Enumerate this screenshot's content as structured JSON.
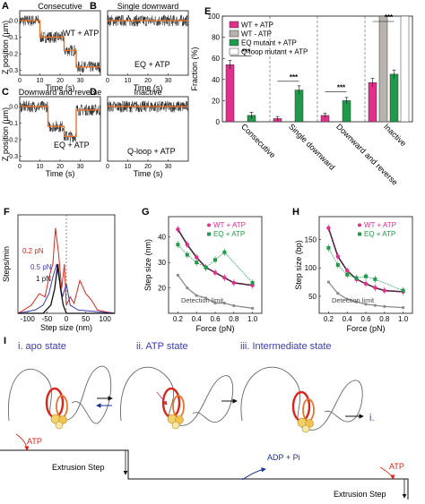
{
  "colors": {
    "wt": "#e0308a",
    "wt_minus": "#b8b3ae",
    "eq": "#1f9a4a",
    "qloop": "#ffffff",
    "trace_fit": "#e8742a",
    "red": "#d9261c",
    "blue": "#1c2f8c",
    "purple": "#3a3ab0",
    "gray_curve": "#8a8a8a"
  },
  "panels": {
    "A": {
      "letter": "A",
      "title": "Consecutive",
      "annotation": "WT + ATP"
    },
    "B": {
      "letter": "B",
      "title": "Single downward",
      "annotation": "EQ + ATP"
    },
    "C": {
      "letter": "C",
      "title": "Downward and reverse",
      "annotation": "EQ + ATP"
    },
    "D": {
      "letter": "D",
      "title": "Inactive",
      "annotation": "Q-loop + ATP"
    },
    "E": {
      "letter": "E"
    },
    "F": {
      "letter": "F",
      "labels": [
        "0.2 pN",
        "0.5 pN",
        "1 pN"
      ]
    },
    "G": {
      "letter": "G",
      "detection": "Detection limit"
    },
    "H": {
      "letter": "H",
      "detection": "Detection limit"
    },
    "I": {
      "letter": "I",
      "states": [
        "i. apo state",
        "ii. ATP state",
        "iii. Intermediate state",
        "i."
      ],
      "atp1": "ATP",
      "atp2": "ATP",
      "adp": "ADP + Pi",
      "step1": "Extrusion Step",
      "step2": "Extrusion Step"
    }
  },
  "axes": {
    "trace_y_label": "Z position (µm)",
    "trace_x_label": "Time (s)",
    "trace_x_ticks": [
      "0",
      "10",
      "20",
      "30"
    ],
    "trace_y_ticks": [
      "0.0",
      "-0.1",
      "-0.2",
      "-0.3"
    ],
    "E_y_label": "Fraction (%)",
    "E_y_ticks": [
      "0",
      "20",
      "40",
      "60",
      "80",
      "100"
    ],
    "F_y_label": "Steps/min",
    "F_x_label": "Step size (nm)",
    "F_x_ticks": [
      "-100",
      "-50",
      "0",
      "50",
      "100"
    ],
    "G_y_label": "Step size (nm)",
    "G_x_label": "Force (pN)",
    "G_y_ticks": [
      "20",
      "30",
      "40"
    ],
    "H_y_label": "Step size (bp)",
    "H_x_label": "Force (pN)",
    "H_y_ticks": [
      "50",
      "100",
      "150"
    ],
    "force_ticks": [
      "0.2",
      "0.4",
      "0.6",
      "0.8",
      "1.0"
    ]
  },
  "chart_data": [
    {
      "type": "bar",
      "panel": "E",
      "categories": [
        "Consecutive",
        "Single downward",
        "Downward and reverse",
        "Inactive"
      ],
      "series": [
        {
          "name": "WT + ATP",
          "values": [
            54,
            3,
            6,
            37
          ],
          "errors": [
            4,
            2,
            2,
            4
          ]
        },
        {
          "name": "WT - ATP",
          "values": [
            0,
            0,
            0,
            100
          ],
          "errors": [
            0,
            0,
            0,
            0
          ]
        },
        {
          "name": "EQ mutant + ATP",
          "values": [
            6,
            30,
            20,
            45
          ],
          "errors": [
            3,
            4,
            3,
            4
          ]
        },
        {
          "name": "Q-loop mutant + ATP",
          "values": [
            0,
            0,
            0,
            100
          ],
          "errors": [
            0,
            0,
            0,
            0
          ]
        }
      ],
      "significance": [
        "***",
        "***",
        "***",
        "***"
      ],
      "ylim": [
        0,
        100
      ]
    },
    {
      "type": "line",
      "panel": "G",
      "series": [
        {
          "name": "WT + ATP",
          "x": [
            0.2,
            0.3,
            0.4,
            0.5,
            0.6,
            0.7,
            0.8,
            1.0
          ],
          "y": [
            43,
            37,
            32,
            28,
            26,
            24,
            22,
            21
          ]
        },
        {
          "name": "EQ + ATP",
          "x": [
            0.2,
            0.3,
            0.4,
            0.5,
            0.6,
            0.7,
            1.0
          ],
          "y": [
            37,
            33,
            30,
            28,
            31,
            34,
            22
          ]
        },
        {
          "name": "Detection limit",
          "x": [
            0.2,
            0.3,
            0.4,
            0.5,
            0.6,
            0.7,
            0.8,
            1.0
          ],
          "y": [
            25,
            20,
            17,
            16,
            14,
            14,
            13,
            12
          ]
        }
      ],
      "xlim": [
        0.1,
        1.1
      ],
      "ylim": [
        10,
        48
      ]
    },
    {
      "type": "line",
      "panel": "H",
      "series": [
        {
          "name": "WT + ATP",
          "x": [
            0.2,
            0.3,
            0.4,
            0.5,
            0.6,
            0.7,
            0.8,
            1.0
          ],
          "y": [
            170,
            120,
            95,
            80,
            72,
            65,
            60,
            58
          ]
        },
        {
          "name": "EQ + ATP",
          "x": [
            0.2,
            0.3,
            0.4,
            0.5,
            0.6,
            0.7,
            1.0
          ],
          "y": [
            135,
            105,
            88,
            82,
            85,
            80,
            60
          ]
        },
        {
          "name": "Detection limit",
          "x": [
            0.2,
            0.3,
            0.4,
            0.5,
            0.6,
            0.7,
            0.8,
            1.0
          ],
          "y": [
            75,
            55,
            45,
            40,
            36,
            34,
            32,
            30
          ]
        }
      ],
      "xlim": [
        0.1,
        1.1
      ],
      "ylim": [
        20,
        190
      ]
    }
  ]
}
